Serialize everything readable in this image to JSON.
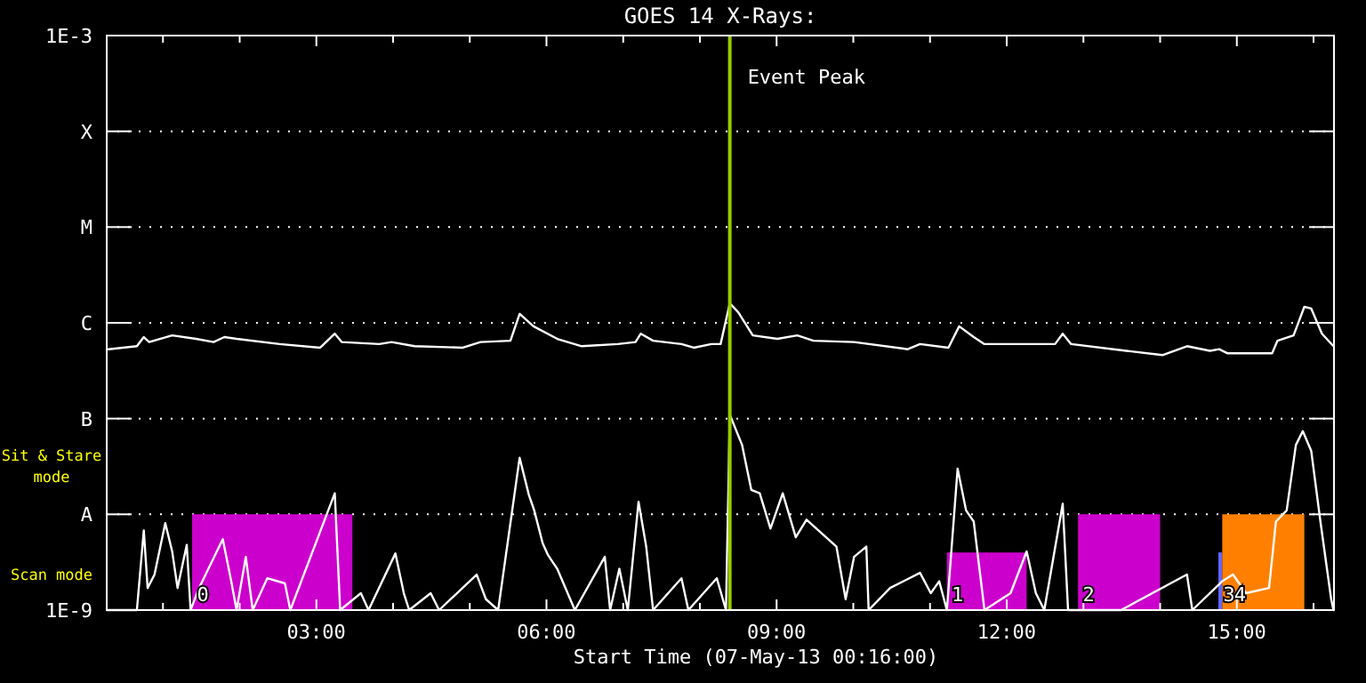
{
  "chart_data": {
    "type": "line",
    "title": "GOES 14 X-Rays:",
    "xlabel": "Start Time (07-May-13 00:16:00)",
    "log": "y",
    "grid": "y",
    "line_style": "solid",
    "marker": "none",
    "xlim": [
      0.2667,
      16.2667
    ],
    "xticks": [
      {
        "value": 1,
        "label": null
      },
      {
        "value": 2,
        "label": null
      },
      {
        "value": 3,
        "label": "03:00"
      },
      {
        "value": 4,
        "label": null
      },
      {
        "value": 5,
        "label": null
      },
      {
        "value": 6,
        "label": "06:00"
      },
      {
        "value": 7,
        "label": null
      },
      {
        "value": 8,
        "label": null
      },
      {
        "value": 9,
        "label": "09:00"
      },
      {
        "value": 10,
        "label": null
      },
      {
        "value": 11,
        "label": null
      },
      {
        "value": 12,
        "label": "12:00"
      },
      {
        "value": 13,
        "label": null
      },
      {
        "value": 14,
        "label": null
      },
      {
        "value": 15,
        "label": "15:00"
      },
      {
        "value": 16,
        "label": null
      }
    ],
    "ylim": [
      1e-09,
      0.001
    ],
    "yticks": [
      {
        "value": 1e-09,
        "label": "1E-9"
      },
      {
        "value": 1e-08,
        "label": "A"
      },
      {
        "value": 1e-07,
        "label": "B"
      },
      {
        "value": 1e-06,
        "label": "C"
      },
      {
        "value": 1e-05,
        "label": "M"
      },
      {
        "value": 0.0001,
        "label": "X"
      },
      {
        "value": 0.001,
        "label": "1E-3"
      }
    ],
    "series": [
      {
        "type": "area",
        "color": "#cc00cc",
        "x": [
          1.38,
          1.38,
          3.47,
          3.47
        ],
        "values": [
          1e-09,
          1e-08,
          1e-08,
          1e-09
        ]
      },
      {
        "type": "area",
        "color": "#cc00cc",
        "x": [
          11.22,
          11.22,
          12.26,
          12.26
        ],
        "values": [
          1e-09,
          4e-09,
          4e-09,
          1e-09
        ]
      },
      {
        "type": "area",
        "color": "#cc00cc",
        "x": [
          12.93,
          12.93,
          14.0,
          14.0
        ],
        "values": [
          1e-09,
          1e-08,
          1e-08,
          1e-09
        ]
      },
      {
        "type": "area",
        "color": "#6666ff",
        "x": [
          14.76,
          14.76,
          14.81,
          14.81
        ],
        "values": [
          1e-09,
          4e-09,
          4e-09,
          1e-09
        ]
      },
      {
        "type": "area",
        "color": "#ff8000",
        "x": [
          14.81,
          14.81,
          15.88,
          15.88
        ],
        "values": [
          1e-09,
          1e-08,
          1e-08,
          1e-09
        ]
      },
      {
        "type": "line",
        "color": "#ffffff",
        "x": [
          0.29,
          0.66,
          0.75,
          0.82,
          1.12,
          1.43,
          1.66,
          1.8,
          1.96,
          2.52,
          3.05,
          3.24,
          3.33,
          3.82,
          3.98,
          4.28,
          4.91,
          5.14,
          5.53,
          5.65,
          5.83,
          6.14,
          6.46,
          6.93,
          7.16,
          7.23,
          7.39,
          7.76,
          7.92,
          8.15,
          8.27,
          8.39,
          8.5,
          8.69,
          9.01,
          9.27,
          9.48,
          10.01,
          10.71,
          10.87,
          11.24,
          11.38,
          11.57,
          11.71,
          12.33,
          12.63,
          12.73,
          12.84,
          13.56,
          14.03,
          14.35,
          14.65,
          14.77,
          14.88,
          15.46,
          15.53,
          15.74,
          15.88,
          15.97,
          16.11,
          16.26
        ],
        "values": [
          5.3e-07,
          5.7e-07,
          7.1e-07,
          6.3e-07,
          7.4e-07,
          6.8e-07,
          6.3e-07,
          7.1e-07,
          6.8e-07,
          6e-07,
          5.5e-07,
          7.7e-07,
          6.3e-07,
          6e-07,
          6.3e-07,
          5.7e-07,
          5.5e-07,
          6.3e-07,
          6.5e-07,
          1.24e-06,
          9.2e-07,
          6.8e-07,
          5.7e-07,
          6e-07,
          6.3e-07,
          7.7e-07,
          6.5e-07,
          6e-07,
          5.5e-07,
          6e-07,
          6e-07,
          1.6e-06,
          1.29e-06,
          7.4e-07,
          6.8e-07,
          7.4e-07,
          6.5e-07,
          6.3e-07,
          5.3e-07,
          6e-07,
          5.5e-07,
          9.2e-07,
          7.1e-07,
          6e-07,
          6e-07,
          6e-07,
          7.7e-07,
          6e-07,
          5.1e-07,
          4.6e-07,
          5.7e-07,
          5.1e-07,
          5.3e-07,
          4.8e-07,
          4.8e-07,
          6.5e-07,
          7.4e-07,
          1.47e-06,
          1.41e-06,
          7.7e-07,
          5.7e-07
        ]
      },
      {
        "type": "line",
        "color": "#ffffff",
        "x": [
          0.27,
          0.66,
          0.75,
          0.8,
          0.89,
          1.03,
          1.12,
          1.19,
          1.31,
          1.36,
          1.47,
          1.78,
          1.89,
          1.96,
          2.08,
          2.17,
          2.36,
          2.59,
          2.66,
          3.24,
          3.31,
          3.58,
          3.68,
          4.03,
          4.14,
          4.21,
          4.49,
          4.6,
          5.09,
          5.21,
          5.37,
          5.65,
          5.77,
          5.84,
          5.95,
          6.02,
          6.14,
          6.37,
          6.76,
          6.83,
          6.95,
          7.06,
          7.2,
          7.3,
          7.39,
          7.76,
          7.85,
          8.22,
          8.34,
          8.39,
          8.55,
          8.67,
          8.78,
          8.92,
          9.08,
          9.25,
          9.39,
          9.59,
          9.78,
          9.9,
          10.01,
          10.17,
          10.2,
          10.48,
          10.87,
          11.01,
          11.12,
          11.22,
          11.36,
          11.47,
          11.57,
          11.71,
          12.05,
          12.26,
          12.38,
          12.49,
          12.73,
          12.8,
          13.49,
          14.35,
          14.42,
          14.81,
          14.95,
          15.12,
          15.42,
          15.51,
          15.65,
          15.77,
          15.86,
          15.97,
          16.09,
          16.23,
          16.26
        ],
        "values": [
          1e-09,
          1e-09,
          6.8e-09,
          1.7e-09,
          2.35e-09,
          8.1e-09,
          4.1e-09,
          1.7e-09,
          4.8e-09,
          1e-09,
          1.7e-09,
          5.5e-09,
          2e-09,
          1e-09,
          3.6e-09,
          1e-09,
          2.15e-09,
          1.9e-09,
          1e-09,
          1.66e-08,
          1e-09,
          1.5e-09,
          1e-09,
          3.9e-09,
          1.5e-09,
          1e-09,
          1.5e-09,
          1e-09,
          2.35e-09,
          1.3e-09,
          1e-09,
          3.9e-08,
          1.6e-08,
          1.1e-08,
          5e-09,
          3.75e-09,
          2.7e-09,
          1e-09,
          3.6e-09,
          1e-09,
          2.7e-09,
          1e-09,
          1.35e-08,
          4.6e-09,
          1e-09,
          2.15e-09,
          1e-09,
          2.15e-09,
          1e-09,
          1.1e-07,
          5.3e-08,
          1.8e-08,
          1.66e-08,
          7.1e-09,
          1.66e-08,
          5.75e-09,
          8.8e-09,
          6.3e-09,
          4.6e-09,
          1.3e-09,
          3.6e-09,
          4.6e-09,
          1e-09,
          1.7e-09,
          2.45e-09,
          1.5e-09,
          2e-09,
          1e-09,
          3e-08,
          1.1e-08,
          8.4e-09,
          1e-09,
          1.5e-09,
          4.1e-09,
          1.5e-09,
          1e-09,
          1.29e-08,
          1e-09,
          1e-09,
          2.35e-09,
          1e-09,
          2e-09,
          2.35e-09,
          1.5e-09,
          1.7e-09,
          8.4e-09,
          1.1e-08,
          5.3e-08,
          7.4e-08,
          4.6e-08,
          8.4e-09,
          1.3e-09,
          1e-09
        ]
      }
    ],
    "ref_lines": [
      {
        "axis": "x",
        "value": 8.39,
        "label": "Event Peak",
        "color": "#99cc00"
      }
    ],
    "annotations": [
      "Sit & Stare mode",
      "Scan mode",
      "0",
      "1",
      "2",
      "3",
      "4"
    ]
  }
}
